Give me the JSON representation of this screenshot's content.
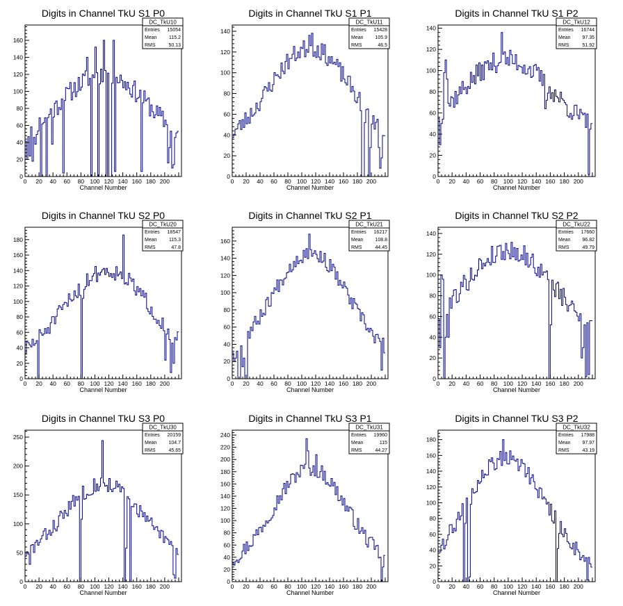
{
  "figure": {
    "width": 896,
    "height": 872,
    "line_color": "#00008b",
    "frame_color": "#000000"
  },
  "chart_data": [
    {
      "type": "histogram",
      "title": "Digits in Channel TkU S1 P0",
      "xlabel": "Channel Number",
      "xlim": [
        0,
        224
      ],
      "ylim": [
        0,
        178
      ],
      "xticks": [
        0,
        20,
        40,
        60,
        80,
        100,
        120,
        140,
        160,
        180,
        200
      ],
      "yticks": [
        0,
        20,
        40,
        60,
        80,
        100,
        120,
        140,
        160
      ],
      "stats": {
        "name": "DC_TkU10",
        "entries": "15054",
        "mean": "115.2",
        "rms": "50.13"
      },
      "shape": {
        "type": "noisy_hump",
        "seed": 11,
        "peak_x": 112,
        "peak_y": 120,
        "width": 68,
        "base": 22,
        "amp": 12
      },
      "spikes": [
        [
          2,
          20
        ],
        [
          6,
          24
        ],
        [
          10,
          18
        ],
        [
          14,
          38
        ],
        [
          22,
          0
        ],
        [
          30,
          0
        ],
        [
          38,
          38
        ],
        [
          54,
          4
        ],
        [
          88,
          0
        ],
        [
          89,
          140
        ],
        [
          94,
          0
        ],
        [
          100,
          152
        ],
        [
          105,
          0
        ],
        [
          112,
          0
        ],
        [
          113,
          160
        ],
        [
          116,
          0
        ],
        [
          121,
          0
        ],
        [
          122,
          0
        ],
        [
          126,
          160
        ],
        [
          128,
          6
        ],
        [
          166,
          6
        ],
        [
          204,
          16
        ],
        [
          206,
          34
        ],
        [
          210,
          10
        ],
        [
          212,
          14
        ],
        [
          214,
          46
        ]
      ]
    },
    {
      "type": "histogram",
      "title": "Digits in Channel TkU S1 P1",
      "xlabel": "Channel Number",
      "xlim": [
        0,
        224
      ],
      "ylim": [
        0,
        146
      ],
      "xticks": [
        0,
        20,
        40,
        60,
        80,
        100,
        120,
        140,
        160,
        180,
        200
      ],
      "yticks": [
        0,
        20,
        40,
        60,
        80,
        100,
        120,
        140
      ],
      "stats": {
        "name": "DC_TkU11",
        "entries": "15428",
        "mean": "105.9",
        "rms": "46.5"
      },
      "shape": {
        "type": "noisy_hump",
        "seed": 23,
        "peak_x": 112,
        "peak_y": 124,
        "width": 60,
        "base": 24,
        "amp": 9
      },
      "spikes": [
        [
          110,
          136
        ],
        [
          114,
          138
        ],
        [
          186,
          0
        ],
        [
          188,
          0
        ],
        [
          190,
          52
        ],
        [
          196,
          0
        ],
        [
          198,
          28
        ],
        [
          210,
          28
        ],
        [
          212,
          8
        ],
        [
          214,
          18
        ]
      ]
    },
    {
      "type": "histogram",
      "title": "Digits in Channel TkU S1 P2",
      "xlabel": "Channel Number",
      "xlim": [
        0,
        224
      ],
      "ylim": [
        0,
        143
      ],
      "xticks": [
        0,
        20,
        40,
        60,
        80,
        100,
        120,
        140,
        160,
        180,
        200
      ],
      "yticks": [
        0,
        20,
        40,
        60,
        80,
        100,
        120,
        140
      ],
      "stats": {
        "name": "DC_TkU12",
        "entries": "16744",
        "mean": "97.35",
        "rms": "51.92"
      },
      "shape": {
        "type": "noisy_hump",
        "seed": 37,
        "peak_x": 98,
        "peak_y": 110,
        "width": 66,
        "base": 34,
        "amp": 10
      },
      "spikes": [
        [
          2,
          30
        ],
        [
          4,
          50
        ],
        [
          8,
          98
        ],
        [
          10,
          110
        ],
        [
          12,
          92
        ],
        [
          90,
          136
        ],
        [
          152,
          64
        ],
        [
          154,
          72
        ],
        [
          214,
          2
        ]
      ]
    },
    {
      "type": "histogram",
      "title": "Digits in Channel TkU S2 P0",
      "xlabel": "Channel Number",
      "xlim": [
        0,
        224
      ],
      "ylim": [
        0,
        196
      ],
      "xticks": [
        0,
        20,
        40,
        60,
        80,
        100,
        120,
        140,
        160,
        180,
        200
      ],
      "yticks": [
        0,
        20,
        40,
        60,
        80,
        100,
        120,
        140,
        160,
        180
      ],
      "stats": {
        "name": "DC_TkU20",
        "entries": "18547",
        "mean": "115.3",
        "rms": "47.8"
      },
      "shape": {
        "type": "noisy_hump",
        "seed": 51,
        "peak_x": 118,
        "peak_y": 140,
        "width": 62,
        "base": 18,
        "amp": 11
      },
      "spikes": [
        [
          18,
          0
        ],
        [
          80,
          0
        ],
        [
          82,
          104
        ],
        [
          140,
          186
        ],
        [
          200,
          24
        ],
        [
          208,
          8
        ],
        [
          210,
          46
        ],
        [
          212,
          20
        ]
      ]
    },
    {
      "type": "histogram",
      "title": "Digits in Channel TkU S2 P1",
      "xlabel": "Channel Number",
      "xlim": [
        0,
        224
      ],
      "ylim": [
        0,
        176
      ],
      "xticks": [
        0,
        20,
        40,
        60,
        80,
        100,
        120,
        140,
        160,
        180,
        200
      ],
      "yticks": [
        0,
        20,
        40,
        60,
        80,
        100,
        120,
        140,
        160
      ],
      "stats": {
        "name": "DC_TkU21",
        "entries": "16217",
        "mean": "108.8",
        "rms": "44.45"
      },
      "shape": {
        "type": "noisy_hump",
        "seed": 67,
        "peak_x": 112,
        "peak_y": 146,
        "width": 56,
        "base": 16,
        "amp": 9
      },
      "spikes": [
        [
          2,
          20
        ],
        [
          4,
          24
        ],
        [
          8,
          0
        ],
        [
          10,
          0
        ],
        [
          14,
          14
        ],
        [
          16,
          24
        ],
        [
          18,
          0
        ],
        [
          20,
          0
        ],
        [
          110,
          168
        ],
        [
          112,
          150
        ],
        [
          214,
          10
        ]
      ]
    },
    {
      "type": "histogram",
      "title": "Digits in Channel TkU S2 P2",
      "xlabel": "Channel Number",
      "xlim": [
        0,
        224
      ],
      "ylim": [
        0,
        146
      ],
      "xticks": [
        0,
        20,
        40,
        60,
        80,
        100,
        120,
        140,
        160,
        180,
        200
      ],
      "yticks": [
        0,
        20,
        40,
        60,
        80,
        100,
        120,
        140
      ],
      "stats": {
        "name": "DC_TkU22",
        "entries": "17660",
        "mean": "96.82",
        "rms": "49.79"
      },
      "shape": {
        "type": "noisy_hump",
        "seed": 79,
        "peak_x": 100,
        "peak_y": 124,
        "width": 64,
        "base": 36,
        "amp": 10
      },
      "spikes": [
        [
          2,
          30
        ],
        [
          4,
          100
        ],
        [
          6,
          96
        ],
        [
          8,
          0
        ],
        [
          10,
          40
        ],
        [
          12,
          62
        ],
        [
          14,
          40
        ],
        [
          158,
          0
        ],
        [
          160,
          52
        ],
        [
          204,
          20
        ],
        [
          206,
          30
        ],
        [
          210,
          2
        ],
        [
          214,
          4
        ]
      ]
    },
    {
      "type": "histogram",
      "title": "Digits in Channel TkU S3 P0",
      "xlabel": "Channel Number",
      "xlim": [
        0,
        224
      ],
      "ylim": [
        0,
        262
      ],
      "xticks": [
        0,
        20,
        40,
        60,
        80,
        100,
        120,
        140,
        160,
        180,
        200
      ],
      "yticks": [
        0,
        50,
        100,
        150,
        200,
        250
      ],
      "stats": {
        "name": "DC_TkU30",
        "entries": "20159",
        "mean": "104.7",
        "rms": "45.65"
      },
      "shape": {
        "type": "noisy_hump",
        "seed": 83,
        "peak_x": 112,
        "peak_y": 170,
        "width": 58,
        "base": 28,
        "amp": 14
      },
      "spikes": [
        [
          2,
          52
        ],
        [
          4,
          48
        ],
        [
          6,
          30
        ],
        [
          78,
          0
        ],
        [
          80,
          108
        ],
        [
          110,
          244
        ],
        [
          142,
          0
        ],
        [
          144,
          58
        ],
        [
          150,
          0
        ],
        [
          152,
          130
        ],
        [
          212,
          12
        ],
        [
          214,
          6
        ]
      ]
    },
    {
      "type": "histogram",
      "title": "Digits in Channel TkU S3 P1",
      "xlabel": "Channel Number",
      "xlim": [
        0,
        224
      ],
      "ylim": [
        0,
        248
      ],
      "xticks": [
        0,
        20,
        40,
        60,
        80,
        100,
        120,
        140,
        160,
        180,
        200
      ],
      "yticks": [
        0,
        20,
        40,
        60,
        80,
        100,
        120,
        140,
        160,
        180,
        200,
        220,
        240
      ],
      "stats": {
        "name": "DC_TkU31",
        "entries": "19960",
        "mean": "115",
        "rms": "44.27"
      },
      "shape": {
        "type": "noisy_hump",
        "seed": 97,
        "peak_x": 112,
        "peak_y": 186,
        "width": 54,
        "base": 16,
        "amp": 13
      },
      "spikes": [
        [
          106,
          234
        ],
        [
          108,
          214
        ],
        [
          120,
          208
        ],
        [
          214,
          0
        ],
        [
          216,
          24
        ]
      ]
    },
    {
      "type": "histogram",
      "title": "Digits in Channel TkU S3 P2",
      "xlabel": "Channel Number",
      "xlim": [
        0,
        224
      ],
      "ylim": [
        0,
        192
      ],
      "xticks": [
        0,
        20,
        40,
        60,
        80,
        100,
        120,
        140,
        160,
        180,
        200
      ],
      "yticks": [
        0,
        20,
        40,
        60,
        80,
        100,
        120,
        140,
        160,
        180
      ],
      "stats": {
        "name": "DC_TkU32",
        "entries": "17988",
        "mean": "97.97",
        "rms": "43.19"
      },
      "shape": {
        "type": "noisy_hump",
        "seed": 109,
        "peak_x": 98,
        "peak_y": 158,
        "width": 56,
        "base": 10,
        "amp": 11
      },
      "spikes": [
        [
          36,
          0
        ],
        [
          38,
          74
        ],
        [
          42,
          0
        ],
        [
          44,
          6
        ],
        [
          92,
          180
        ],
        [
          168,
          0
        ],
        [
          170,
          42
        ],
        [
          212,
          2
        ]
      ]
    }
  ]
}
